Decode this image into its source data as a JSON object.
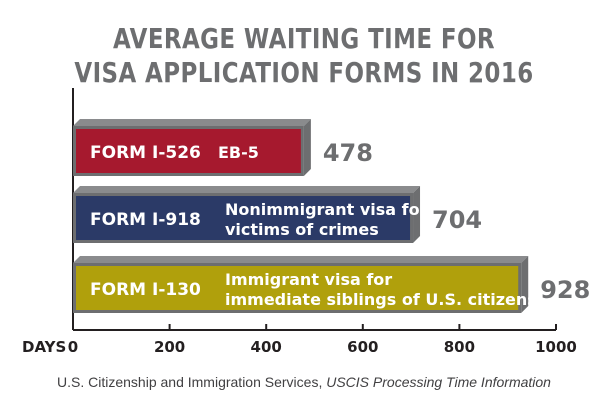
{
  "title_line1": "AVERAGE WAITING TIME FOR",
  "title_line2": "VISA APPLICATION FORMS IN 2016",
  "source_org": "U.S. Citizenship and Immigration Services,",
  "source_pub": "USCIS Processing Time Information",
  "chart_data": {
    "type": "bar",
    "orientation": "horizontal",
    "xlabel": "DAYS",
    "xlim": [
      0,
      1000
    ],
    "xticks": [
      0,
      200,
      400,
      600,
      800,
      1000
    ],
    "grid": false,
    "bars": [
      {
        "form": "FORM I-526",
        "description": [
          "EB-5"
        ],
        "value": 478,
        "color": "#a6192e"
      },
      {
        "form": "FORM I-918",
        "description": [
          "Nonimmigrant visa for",
          "victims of crimes"
        ],
        "value": 704,
        "color": "#2b3a67"
      },
      {
        "form": "FORM I-130",
        "description": [
          "Immigrant visa for",
          "immediate siblings of U.S. citizens"
        ],
        "value": 928,
        "color": "#b0a00c"
      }
    ]
  }
}
